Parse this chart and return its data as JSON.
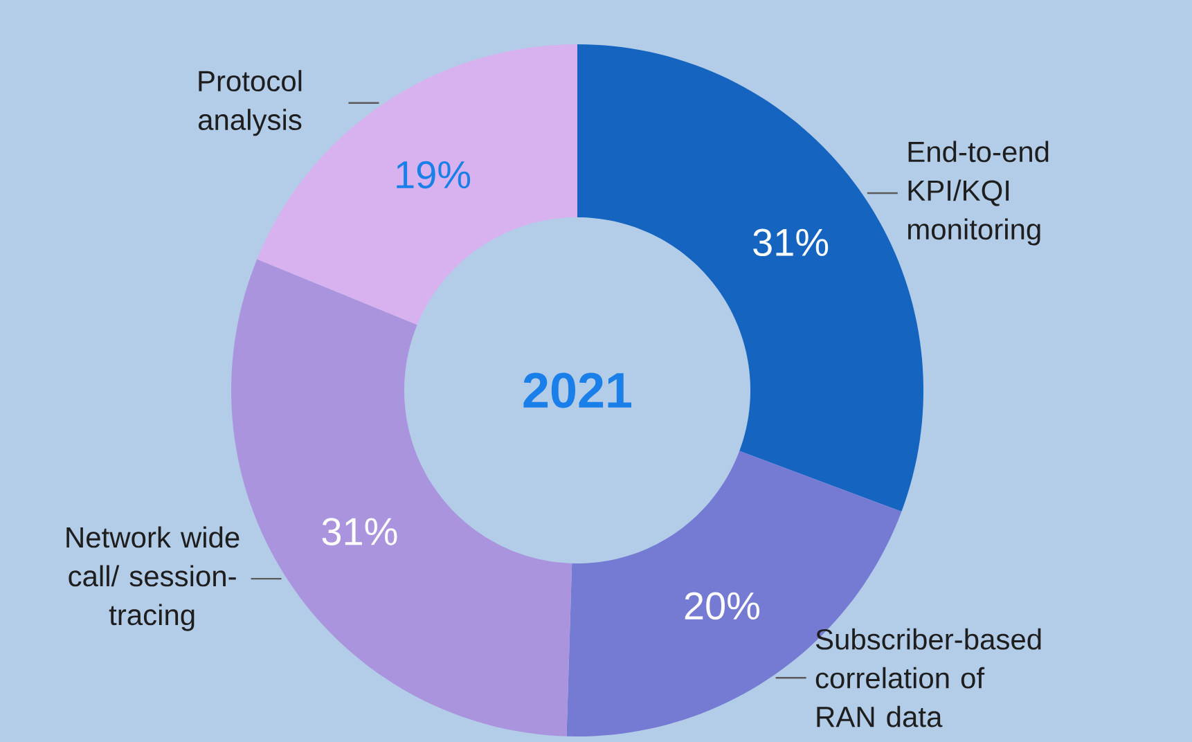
{
  "chart_data": {
    "type": "donut",
    "title": "2021",
    "categories": [
      "End-to-end KPI/KQI monitoring",
      "Subscriber-based correlation of RAN data",
      "Network wide call/ session-tracing",
      "Protocol analysis"
    ],
    "values": [
      31,
      20,
      31,
      19
    ],
    "value_labels": [
      "31%",
      "20%",
      "31%",
      "19%"
    ],
    "colors": [
      "#1565c0",
      "#757bd3",
      "#ab94de",
      "#d8b2ee"
    ]
  }
}
